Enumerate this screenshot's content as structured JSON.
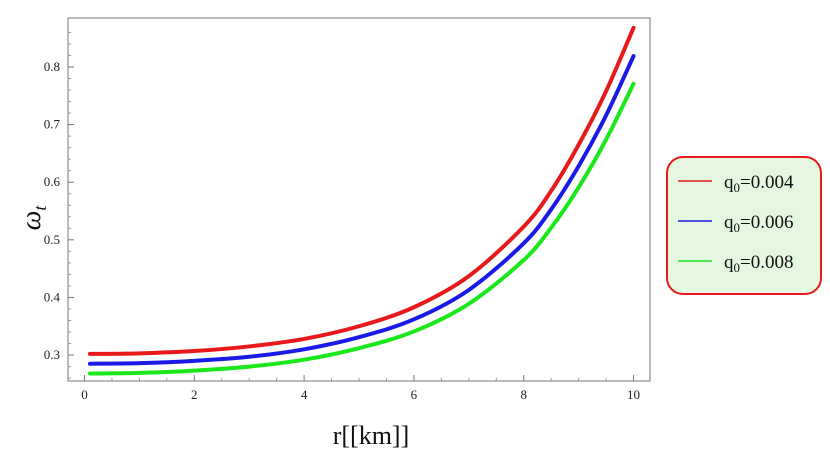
{
  "chart_data": {
    "type": "line",
    "title": "",
    "xlabel": "r[[km]]",
    "ylabel_main": "ω",
    "ylabel_sub": "t",
    "xlim": [
      -0.3,
      10.3
    ],
    "ylim": [
      0.255,
      0.885
    ],
    "xticks": [
      0,
      2,
      4,
      6,
      8,
      10
    ],
    "yticks": [
      0.3,
      0.4,
      0.5,
      0.6,
      0.7,
      0.8
    ],
    "grid": false,
    "legend_position": "right",
    "x": [
      0.1,
      1,
      2,
      3,
      4,
      5,
      6,
      7,
      8,
      8.5,
      9,
      9.5,
      10
    ],
    "series": [
      {
        "name_base": "q",
        "name_sub": "0",
        "name_rest": "=0.004",
        "color": "#e8191a",
        "values": [
          0.302,
          0.303,
          0.307,
          0.315,
          0.328,
          0.35,
          0.383,
          0.437,
          0.523,
          0.585,
          0.665,
          0.758,
          0.868
        ]
      },
      {
        "name_base": "q",
        "name_sub": "0",
        "name_rest": "=0.006",
        "color": "#1a1ae8",
        "values": [
          0.285,
          0.286,
          0.29,
          0.297,
          0.31,
          0.331,
          0.362,
          0.413,
          0.494,
          0.553,
          0.628,
          0.716,
          0.819
        ]
      },
      {
        "name_base": "q",
        "name_sub": "0",
        "name_rest": "=0.008",
        "color": "#1ae81a",
        "values": [
          0.268,
          0.269,
          0.273,
          0.28,
          0.292,
          0.312,
          0.341,
          0.389,
          0.465,
          0.521,
          0.591,
          0.674,
          0.771
        ]
      }
    ]
  },
  "legend": {
    "border_color": "#e8191a",
    "background": "#e6f7e1"
  }
}
